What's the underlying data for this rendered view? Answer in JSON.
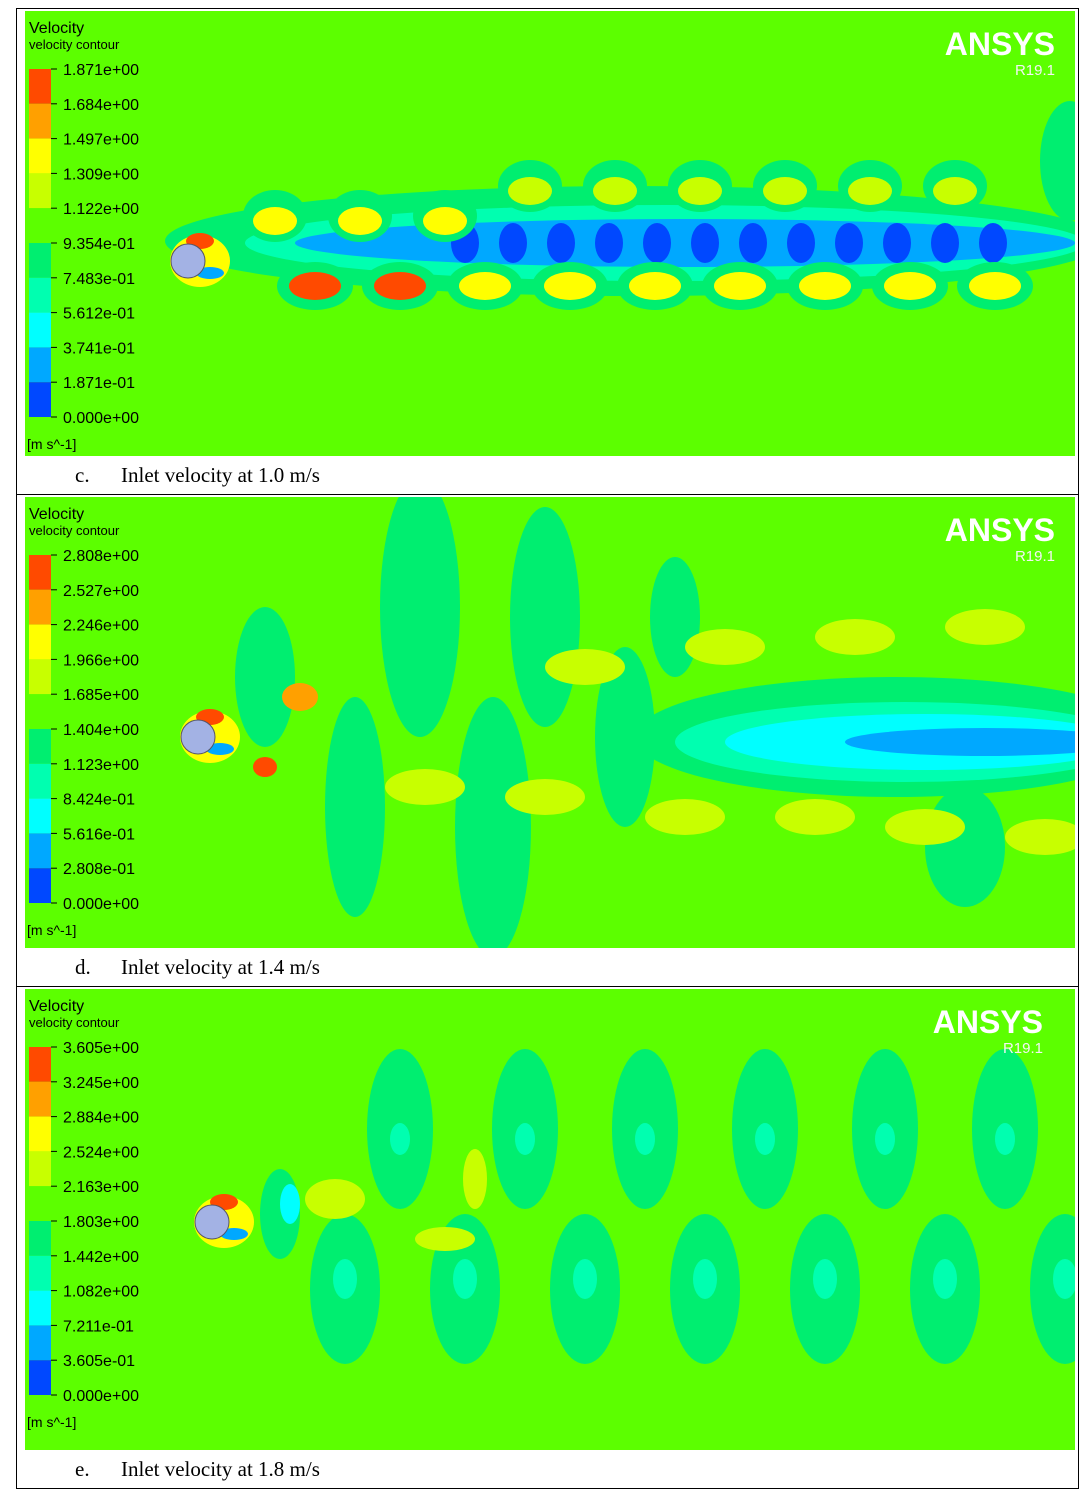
{
  "panels": [
    {
      "title": "Velocity",
      "subtitle": "velocity contour",
      "legend": [
        "1.871e+00",
        "1.684e+00",
        "1.497e+00",
        "1.309e+00",
        "1.122e+00",
        "9.354e-01",
        "7.483e-01",
        "5.612e-01",
        "3.741e-01",
        "1.871e-01",
        "0.000e+00"
      ],
      "unit": "[m s^-1]",
      "brand": "ANSYS",
      "version": "R19.1",
      "caption": {
        "label": "c.",
        "text": "Inlet velocity at 1.0 m/s"
      }
    },
    {
      "title": "Velocity",
      "subtitle": "velocity contour",
      "legend": [
        "2.808e+00",
        "2.527e+00",
        "2.246e+00",
        "1.966e+00",
        "1.685e+00",
        "1.404e+00",
        "1.123e+00",
        "8.424e-01",
        "5.616e-01",
        "2.808e-01",
        "0.000e+00"
      ],
      "unit": "[m s^-1]",
      "brand": "ANSYS",
      "version": "R19.1",
      "caption": {
        "label": "d.",
        "text": "Inlet velocity at 1.4 m/s"
      }
    },
    {
      "title": "Velocity",
      "subtitle": "velocity contour",
      "legend": [
        "3.605e+00",
        "3.245e+00",
        "2.884e+00",
        "2.524e+00",
        "2.163e+00",
        "1.803e+00",
        "1.442e+00",
        "1.082e+00",
        "7.211e-01",
        "3.605e-01",
        "0.000e+00"
      ],
      "unit": "[m s^-1]",
      "brand": "ANSYS",
      "version": "R19.1",
      "caption": {
        "label": "e.",
        "text": "Inlet velocity at 1.8 m/s"
      }
    }
  ]
}
